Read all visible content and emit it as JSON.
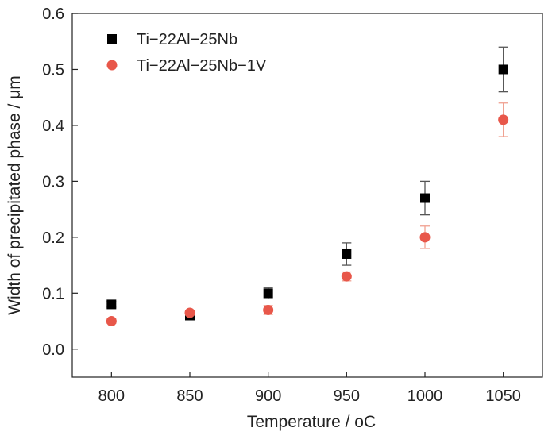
{
  "chart_data": {
    "type": "scatter",
    "xlabel": "Temperature / ",
    "xlabel_unit": "oC",
    "ylabel": "Width of precipitated phase / μm",
    "x_ticks": [
      "800",
      "850",
      "900",
      "950",
      "1000",
      "1050"
    ],
    "y_ticks": [
      "0.0",
      "0.1",
      "0.2",
      "0.3",
      "0.4",
      "0.5",
      "0.6"
    ],
    "xlim": [
      775,
      1075
    ],
    "ylim": [
      -0.05,
      0.6
    ],
    "grid": false,
    "legend_position": "top-left",
    "series": [
      {
        "name": "Ti−22Al−25Nb",
        "marker": "square",
        "color": "#000000",
        "error_color": "#555555",
        "x": [
          800,
          850,
          900,
          950,
          1000,
          1050
        ],
        "y": [
          0.08,
          0.06,
          0.1,
          0.17,
          0.27,
          0.5
        ],
        "yerr": [
          0.005,
          0.005,
          0.01,
          0.02,
          0.03,
          0.04
        ]
      },
      {
        "name": "Ti−22Al−25Nb−1V",
        "marker": "circle",
        "color": "#E8574A",
        "error_color": "#F0A090",
        "x": [
          800,
          850,
          900,
          950,
          1000,
          1050
        ],
        "y": [
          0.05,
          0.065,
          0.07,
          0.13,
          0.2,
          0.41
        ],
        "yerr": [
          0.004,
          0.004,
          0.008,
          0.008,
          0.02,
          0.03
        ]
      }
    ]
  }
}
